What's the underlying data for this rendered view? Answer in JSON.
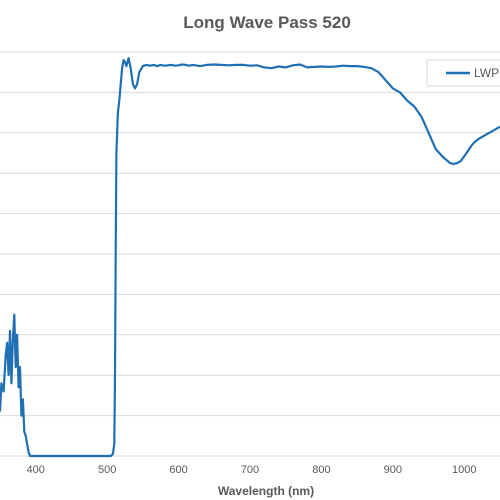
{
  "chart_data": {
    "type": "line",
    "title": "Long Wave Pass 520",
    "xlabel": "Wavelength (nm)",
    "ylabel": "",
    "xlim": [
      350,
      1050
    ],
    "ylim": [
      0,
      100
    ],
    "x_ticks": [
      "400",
      "500",
      "600",
      "700",
      "800",
      "900",
      "1000"
    ],
    "grid": true,
    "legend_position": "top-right",
    "colors": {
      "series": "#1F6FB5",
      "grid": "#D9D9D9",
      "text": "#595959"
    },
    "series": [
      {
        "name": "LWP",
        "points": [
          [
            350,
            11
          ],
          [
            352,
            18
          ],
          [
            355,
            16
          ],
          [
            358,
            25
          ],
          [
            360,
            28
          ],
          [
            362,
            20
          ],
          [
            364,
            31
          ],
          [
            366,
            18
          ],
          [
            368,
            29
          ],
          [
            370,
            35
          ],
          [
            372,
            22
          ],
          [
            374,
            30
          ],
          [
            376,
            17
          ],
          [
            378,
            22
          ],
          [
            380,
            10
          ],
          [
            382,
            14
          ],
          [
            384,
            6
          ],
          [
            386,
            5
          ],
          [
            388,
            3
          ],
          [
            390,
            1
          ],
          [
            392,
            0
          ],
          [
            400,
            0
          ],
          [
            450,
            0
          ],
          [
            500,
            0
          ],
          [
            505,
            0
          ],
          [
            508,
            0.5
          ],
          [
            510,
            3
          ],
          [
            511,
            20
          ],
          [
            512,
            50
          ],
          [
            513,
            75
          ],
          [
            515,
            85
          ],
          [
            517,
            88
          ],
          [
            519,
            92
          ],
          [
            521,
            96
          ],
          [
            523,
            98
          ],
          [
            525,
            97.5
          ],
          [
            527,
            96.5
          ],
          [
            530,
            98.5
          ],
          [
            533,
            96
          ],
          [
            536,
            92
          ],
          [
            539,
            91
          ],
          [
            542,
            92
          ],
          [
            545,
            95
          ],
          [
            550,
            96.5
          ],
          [
            555,
            96.8
          ],
          [
            560,
            96.6
          ],
          [
            565,
            96.8
          ],
          [
            570,
            96.5
          ],
          [
            575,
            96.8
          ],
          [
            580,
            96.6
          ],
          [
            585,
            96.7
          ],
          [
            590,
            96.8
          ],
          [
            595,
            96.6
          ],
          [
            600,
            96.7
          ],
          [
            605,
            96.9
          ],
          [
            610,
            96.8
          ],
          [
            615,
            96.6
          ],
          [
            620,
            96.8
          ],
          [
            630,
            96.5
          ],
          [
            640,
            96.8
          ],
          [
            650,
            96.9
          ],
          [
            660,
            96.8
          ],
          [
            670,
            96.7
          ],
          [
            680,
            96.8
          ],
          [
            690,
            96.8
          ],
          [
            700,
            96.6
          ],
          [
            710,
            96.7
          ],
          [
            720,
            96.2
          ],
          [
            730,
            96
          ],
          [
            740,
            96.4
          ],
          [
            750,
            96.2
          ],
          [
            760,
            96.7
          ],
          [
            770,
            96.9
          ],
          [
            780,
            96.2
          ],
          [
            790,
            96.3
          ],
          [
            800,
            96.4
          ],
          [
            810,
            96.3
          ],
          [
            820,
            96.4
          ],
          [
            830,
            96.6
          ],
          [
            840,
            96.5
          ],
          [
            850,
            96.5
          ],
          [
            860,
            96.3
          ],
          [
            870,
            96
          ],
          [
            880,
            95
          ],
          [
            890,
            93
          ],
          [
            900,
            91
          ],
          [
            910,
            90
          ],
          [
            920,
            88
          ],
          [
            930,
            86.5
          ],
          [
            940,
            84
          ],
          [
            950,
            80
          ],
          [
            960,
            76
          ],
          [
            970,
            74
          ],
          [
            980,
            72.5
          ],
          [
            985,
            72.3
          ],
          [
            990,
            72.5
          ],
          [
            995,
            73
          ],
          [
            1000,
            74.2
          ],
          [
            1005,
            75.5
          ],
          [
            1010,
            76.8
          ],
          [
            1015,
            77.8
          ],
          [
            1020,
            78.5
          ],
          [
            1030,
            79.5
          ],
          [
            1040,
            80.5
          ],
          [
            1050,
            81.5
          ]
        ]
      }
    ]
  }
}
